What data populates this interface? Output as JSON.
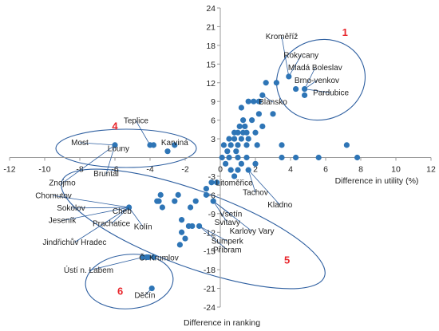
{
  "chart_data": {
    "type": "scatter",
    "xlabel": "Difference in utility (%)",
    "ylabel": "Difference in ranking",
    "xlim": [
      -12,
      12
    ],
    "ylim": [
      -24,
      24
    ],
    "xticks": [
      "-12",
      "-10",
      "-8",
      "-6",
      "-4",
      "-2",
      "0",
      "2",
      "4",
      "6",
      "8",
      "10",
      "12"
    ],
    "yticks": [
      "-24",
      "-21",
      "-18",
      "-15",
      "-12",
      "-9",
      "-6",
      "-3",
      "0",
      "3",
      "6",
      "9",
      "12",
      "15",
      "18",
      "21",
      "24"
    ],
    "grid": false,
    "marker_color": "#2e75b6",
    "ellipse_color": "#2e5fa0",
    "group_label_color": "#e8262c",
    "points": [
      [
        2.6,
        12
      ],
      [
        3.2,
        12
      ],
      [
        3.9,
        13
      ],
      [
        4.3,
        11
      ],
      [
        4.8,
        11
      ],
      [
        4.8,
        10
      ],
      [
        2.4,
        10
      ],
      [
        1.6,
        9
      ],
      [
        1.9,
        9
      ],
      [
        2.2,
        9
      ],
      [
        1.2,
        8
      ],
      [
        2.2,
        7
      ],
      [
        3.0,
        7
      ],
      [
        1.3,
        6
      ],
      [
        1.8,
        6
      ],
      [
        1.1,
        5
      ],
      [
        1.4,
        5
      ],
      [
        2.4,
        5
      ],
      [
        0.8,
        4
      ],
      [
        1.0,
        4
      ],
      [
        1.3,
        4
      ],
      [
        1.5,
        4
      ],
      [
        2.0,
        4
      ],
      [
        0.5,
        3
      ],
      [
        0.8,
        3
      ],
      [
        1.2,
        3
      ],
      [
        1.6,
        3
      ],
      [
        0.2,
        2
      ],
      [
        0.6,
        2
      ],
      [
        1.0,
        2
      ],
      [
        1.5,
        2
      ],
      [
        2.1,
        2
      ],
      [
        3.5,
        2
      ],
      [
        7.2,
        2
      ],
      [
        0.4,
        1
      ],
      [
        0.9,
        1
      ],
      [
        0.1,
        0
      ],
      [
        0.5,
        0
      ],
      [
        1.0,
        0
      ],
      [
        1.5,
        0
      ],
      [
        3.5,
        0
      ],
      [
        4.3,
        0
      ],
      [
        5.6,
        0
      ],
      [
        7.8,
        0
      ],
      [
        0.3,
        -1
      ],
      [
        1.2,
        -1
      ],
      [
        2.0,
        -1
      ],
      [
        0.6,
        -2
      ],
      [
        1.0,
        -2
      ],
      [
        1.6,
        -2
      ],
      [
        0.8,
        -3
      ],
      [
        -0.2,
        -4
      ],
      [
        -0.5,
        -4
      ],
      [
        -6.0,
        2
      ],
      [
        -4.0,
        2
      ],
      [
        -3.8,
        2
      ],
      [
        -3.0,
        1
      ],
      [
        -2.6,
        2
      ],
      [
        -0.8,
        -5
      ],
      [
        -0.8,
        -6
      ],
      [
        -0.4,
        -7
      ],
      [
        -2.4,
        -6
      ],
      [
        -2.6,
        -7
      ],
      [
        -1.4,
        -7
      ],
      [
        -1.7,
        -8
      ],
      [
        -3.4,
        -6
      ],
      [
        -3.5,
        -7
      ],
      [
        -3.6,
        -7
      ],
      [
        -5.2,
        -8
      ],
      [
        -3.3,
        -8
      ],
      [
        -2.2,
        -10
      ],
      [
        -1.8,
        -11
      ],
      [
        -1.6,
        -11
      ],
      [
        -1.2,
        -11
      ],
      [
        -2.2,
        -12
      ],
      [
        -2.0,
        -13
      ],
      [
        -2.3,
        -14
      ],
      [
        -4.4,
        -16
      ],
      [
        -4.1,
        -16
      ],
      [
        -3.8,
        -16
      ],
      [
        -4.2,
        -16
      ],
      [
        -3.9,
        -21
      ]
    ],
    "labels": [
      {
        "text": "Kroměříž",
        "x": 3.5,
        "y": 19
      },
      {
        "text": "Rokycany",
        "x": 4.6,
        "y": 16
      },
      {
        "text": "Mladá Boleslav",
        "x": 5.4,
        "y": 14
      },
      {
        "text": "Brno-venkov",
        "x": 5.5,
        "y": 12
      },
      {
        "text": "Pardubice",
        "x": 6.3,
        "y": 10
      },
      {
        "text": "Blansko",
        "x": 3.0,
        "y": 8.5
      },
      {
        "text": "Most",
        "x": -8.0,
        "y": 2
      },
      {
        "text": "Teplice",
        "x": -4.8,
        "y": 5.5
      },
      {
        "text": "Louny",
        "x": -5.8,
        "y": 1
      },
      {
        "text": "Karviná",
        "x": -2.6,
        "y": 2
      },
      {
        "text": "Bruntál",
        "x": -6.5,
        "y": -3
      },
      {
        "text": "Znojmo",
        "x": -9.0,
        "y": -4.5
      },
      {
        "text": "Chomutov",
        "x": -9.5,
        "y": -6.5
      },
      {
        "text": "Sokolov",
        "x": -8.5,
        "y": -8.5
      },
      {
        "text": "Cheb",
        "x": -5.6,
        "y": -9
      },
      {
        "text": "Jeseník",
        "x": -9.0,
        "y": -10.5
      },
      {
        "text": "Prachatice",
        "x": -6.2,
        "y": -11
      },
      {
        "text": "Litoměřice",
        "x": 0.8,
        "y": -4.5
      },
      {
        "text": "Tachov",
        "x": 2.0,
        "y": -6
      },
      {
        "text": "Kladno",
        "x": 3.4,
        "y": -8
      },
      {
        "text": "Vsetín",
        "x": 0.6,
        "y": -9.5
      },
      {
        "text": "Svitavy",
        "x": 0.4,
        "y": -10.8
      },
      {
        "text": "Karlovy Vary",
        "x": 1.8,
        "y": -12.2
      },
      {
        "text": "Šumperk",
        "x": 0.4,
        "y": -13.8
      },
      {
        "text": "Kolín",
        "x": -4.4,
        "y": -11.5
      },
      {
        "text": "Příbram",
        "x": 0.4,
        "y": -15.2
      },
      {
        "text": "Jindřichův Hradec",
        "x": -8.3,
        "y": -14
      },
      {
        "text": "Č. Krumlov",
        "x": -3.5,
        "y": -16.5
      },
      {
        "text": "Ústí n. Labem",
        "x": -7.5,
        "y": -18.5
      },
      {
        "text": "Děčín",
        "x": -4.3,
        "y": -22.5
      }
    ],
    "groups": [
      {
        "label": "1",
        "x": 7.1,
        "y": 19.5
      },
      {
        "label": "4",
        "x": -6.0,
        "y": 4.5
      },
      {
        "label": "5",
        "x": 3.8,
        "y": -17
      },
      {
        "label": "6",
        "x": -5.7,
        "y": -22
      }
    ]
  }
}
